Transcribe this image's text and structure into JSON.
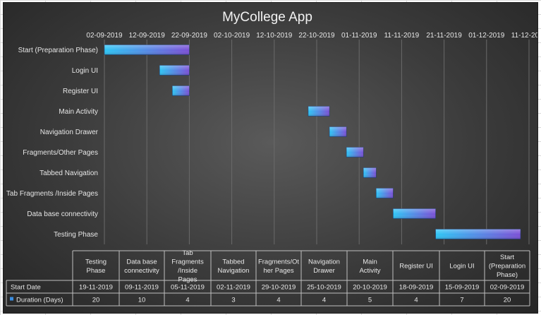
{
  "chart_data": {
    "type": "bar",
    "orientation": "horizontal",
    "stacked": true,
    "title": "MyCollege App",
    "x_tick_labels": [
      "02-09-2019",
      "12-09-2019",
      "22-09-2019",
      "02-10-2019",
      "12-10-2019",
      "22-10-2019",
      "01-11-2019",
      "11-11-2019",
      "21-11-2019",
      "01-12-2019",
      "11-12-2019"
    ],
    "xlim": [
      "2019-09-02",
      "2019-12-11"
    ],
    "tick_interval_days": 10,
    "grid": true,
    "categories": [
      "Start (Preparation Phase)",
      "Login UI",
      "Register UI",
      "Main Activity",
      "Navigation Drawer",
      "Fragments/Other Pages",
      "Tabbed Navigation",
      "Tab Fragments /Inside Pages",
      "Data base connectivity",
      "Testing Phase"
    ],
    "start_dates": [
      "02-09-2019",
      "15-09-2019",
      "18-09-2019",
      "20-10-2019",
      "25-10-2019",
      "29-10-2019",
      "02-11-2019",
      "05-11-2019",
      "09-11-2019",
      "19-11-2019"
    ],
    "start_iso": [
      "2019-09-02",
      "2019-09-15",
      "2019-09-18",
      "2019-10-20",
      "2019-10-25",
      "2019-10-29",
      "2019-11-02",
      "2019-11-05",
      "2019-11-09",
      "2019-11-19"
    ],
    "series": [
      {
        "name": "Start Date",
        "visible": false
      },
      {
        "name": "Duration (Days)",
        "values": [
          20,
          7,
          4,
          5,
          4,
          4,
          3,
          4,
          10,
          20
        ]
      }
    ],
    "colors": {
      "bar_start": "#2ec6f5",
      "bar_end": "#7b4fd6",
      "legend_marker": "#3b8de0"
    },
    "data_table": {
      "columns": [
        "Testing Phase",
        "Data base connectivity",
        "Tab Fragments /Inside Pages",
        "Tabbed Navigation",
        "Fragments/Ot her Pages",
        "Navigation Drawer",
        "Main Activity",
        "Register UI",
        "Login UI",
        "Start (Preparation Phase)"
      ],
      "rows": [
        {
          "label": "Start Date",
          "values": [
            "19-11-2019",
            "09-11-2019",
            "05-11-2019",
            "02-11-2019",
            "29-10-2019",
            "25-10-2019",
            "20-10-2019",
            "18-09-2019",
            "15-09-2019",
            "02-09-2019"
          ]
        },
        {
          "label": "Duration (Days)",
          "values": [
            "20",
            "10",
            "4",
            "3",
            "4",
            "4",
            "5",
            "4",
            "7",
            "20"
          ]
        }
      ]
    }
  }
}
